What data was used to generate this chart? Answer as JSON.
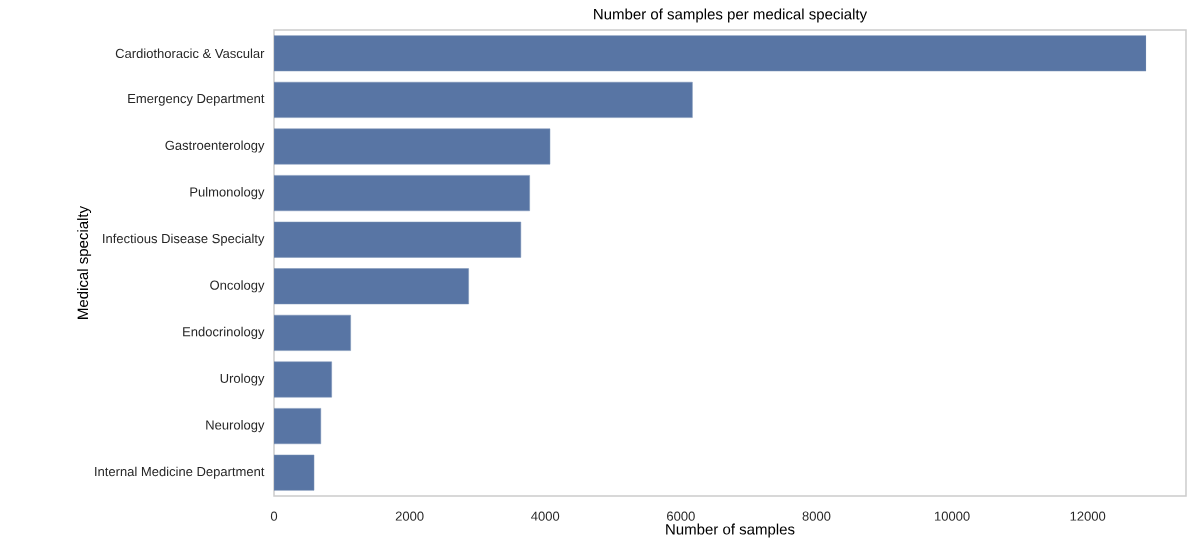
{
  "chart_data": {
    "type": "bar",
    "orientation": "horizontal",
    "title": "Number of samples per medical specialty",
    "xlabel": "Number of samples",
    "ylabel": "Medical specialty",
    "categories": [
      "Cardiothoracic & Vascular",
      "Emergency Department",
      "Gastroenterology",
      "Pulmonology",
      "Infectious Disease Specialty",
      "Oncology",
      "Endocrinology",
      "Urology",
      "Neurology",
      "Internal Medicine Department"
    ],
    "values": [
      12860,
      6170,
      4070,
      3770,
      3640,
      2870,
      1130,
      850,
      690,
      590
    ],
    "color": "#5875a4",
    "xlim": [
      0,
      13450
    ],
    "xticks": [
      0,
      2000,
      4000,
      6000,
      8000,
      10000,
      12000
    ],
    "grid": false
  }
}
